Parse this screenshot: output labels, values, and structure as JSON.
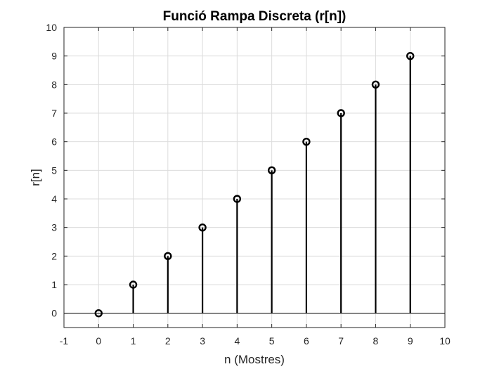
{
  "chart_data": {
    "type": "stem",
    "title": "Funció Rampa Discreta (r[n])",
    "xlabel": "n (Mostres)",
    "ylabel": "r[n]",
    "xlim": [
      -1,
      10
    ],
    "ylim": [
      -0.5,
      10
    ],
    "xticks": [
      -1,
      0,
      1,
      2,
      3,
      4,
      5,
      6,
      7,
      8,
      9,
      10
    ],
    "yticks": [
      0,
      1,
      2,
      3,
      4,
      5,
      6,
      7,
      8,
      9,
      10
    ],
    "grid": true,
    "baseline": 0,
    "marker": "circle",
    "color": "#000000",
    "x": [
      0,
      1,
      2,
      3,
      4,
      5,
      6,
      7,
      8,
      9
    ],
    "y": [
      0,
      1,
      2,
      3,
      4,
      5,
      6,
      7,
      8,
      9
    ]
  }
}
